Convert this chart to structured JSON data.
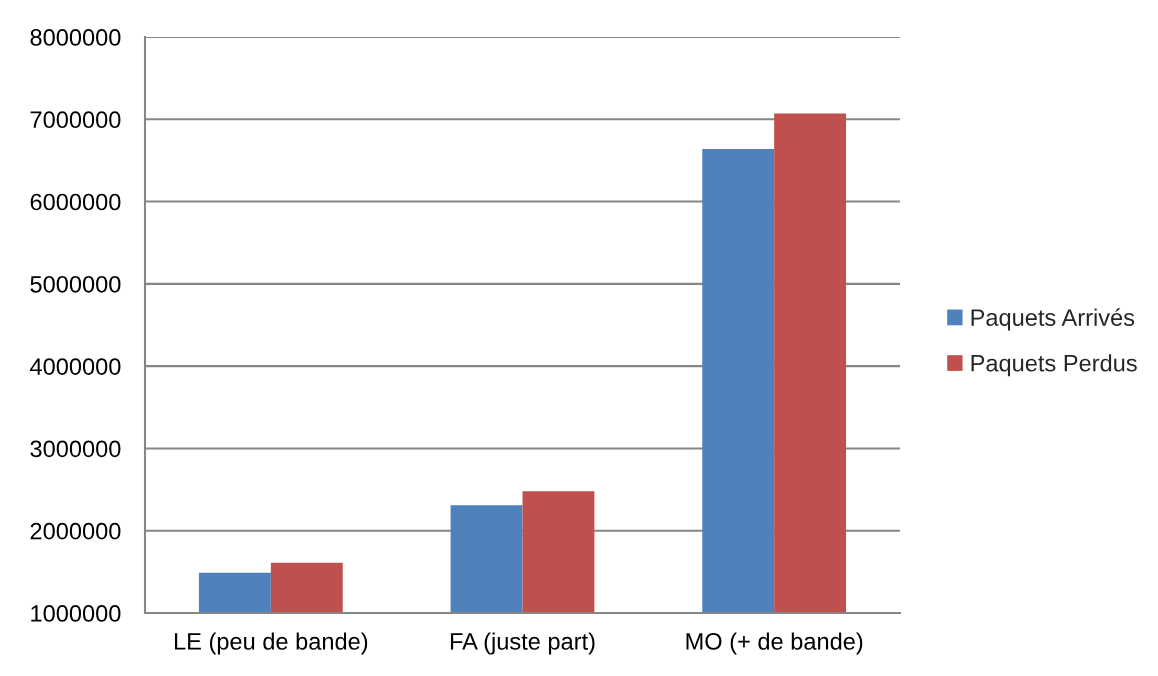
{
  "chart_data": {
    "type": "bar",
    "categories": [
      "LE (peu de bande)",
      "FA (juste part)",
      "MO (+ de bande)"
    ],
    "series": [
      {
        "name": "Paquets Arrivés",
        "color": "#4f81bd",
        "values": [
          1490000,
          2310000,
          6640000
        ]
      },
      {
        "name": "Paquets Perdus",
        "color": "#c0504d",
        "values": [
          1610000,
          2480000,
          7070000
        ]
      }
    ],
    "ylim": [
      1000000,
      8000000
    ],
    "yticks": [
      1000000,
      2000000,
      3000000,
      4000000,
      5000000,
      6000000,
      7000000,
      8000000
    ],
    "grid": "y",
    "legend": "right"
  }
}
